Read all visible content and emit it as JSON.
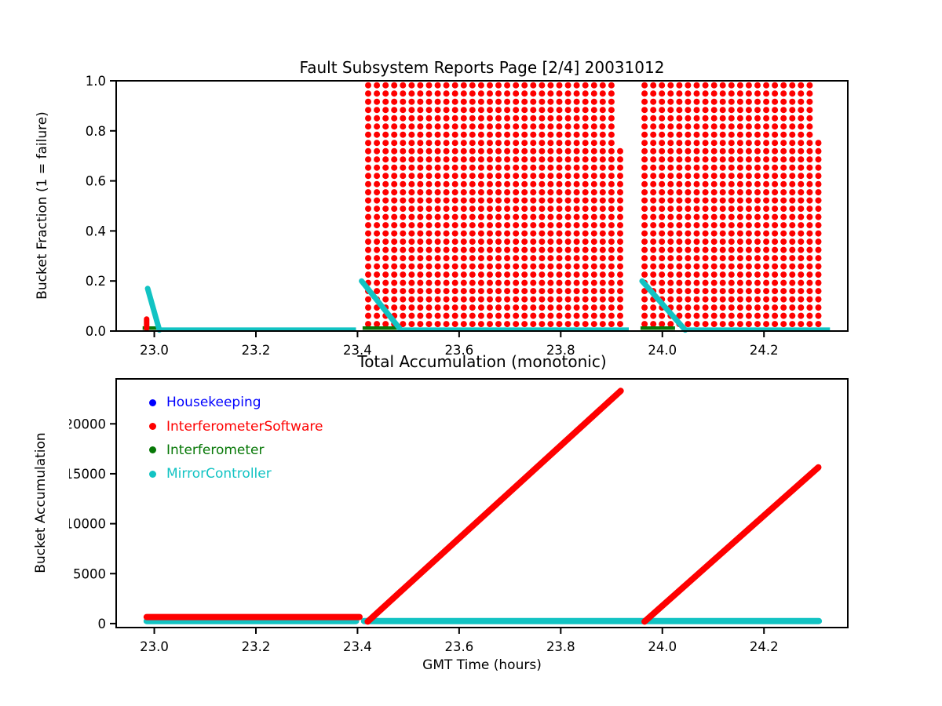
{
  "chart_data": [
    {
      "type": "scatter",
      "title": "Fault Subsystem Reports Page [2/4] 20031012",
      "ylabel": "Bucket Fraction (1 = failure)",
      "xlim": [
        22.925,
        24.365
      ],
      "ylim": [
        0,
        1
      ],
      "grid": false,
      "xticks": [
        [
          23.0,
          "23.0"
        ],
        [
          23.2,
          "23.2"
        ],
        [
          23.4,
          "23.4"
        ],
        [
          23.6,
          "23.6"
        ],
        [
          23.8,
          "23.8"
        ],
        [
          24.0,
          "24.0"
        ],
        [
          24.2,
          "24.2"
        ]
      ],
      "yticks": [
        [
          0.0,
          "0.0"
        ],
        [
          0.2,
          "0.2"
        ],
        [
          0.4,
          "0.4"
        ],
        [
          0.6,
          "0.6"
        ],
        [
          0.8,
          "0.8"
        ],
        [
          1.0,
          "1.0"
        ]
      ],
      "colors": {
        "failure_dots": "#fe0000",
        "mirror_controller": "#12c3c3",
        "interferometer": "#077807",
        "housekeeping": "#0000ff"
      },
      "dot_radius_px": 4,
      "dot_grids": [
        {
          "t_start": 23.421,
          "t_step": 0.0171,
          "cols": 29,
          "f_start": 0.028,
          "f_step": 0.0329,
          "rows": 30,
          "partial_col": {
            "t": 23.917,
            "f_max": 0.73
          }
        },
        {
          "t_start": 23.965,
          "t_step": 0.0171,
          "cols": 20,
          "f_start": 0.028,
          "f_step": 0.0329,
          "rows": 30,
          "partial_col": {
            "t": 24.307,
            "f_max": 0.76
          }
        }
      ],
      "mirror_drain_segments": [
        [
          [
            22.987,
            0.17
          ],
          [
            23.01,
            0.004
          ]
        ],
        [
          [
            23.408,
            0.2
          ],
          [
            23.483,
            0.01
          ]
        ],
        [
          [
            23.96,
            0.2
          ],
          [
            24.045,
            0.004
          ]
        ]
      ],
      "software_spike": [
        [
          22.985,
          0.048
        ],
        [
          22.985,
          0.01
        ]
      ],
      "interferometer_baseline": {
        "value": 0.012,
        "segments": [
          [
            22.977,
            23.012
          ],
          [
            23.41,
            23.483
          ],
          [
            23.957,
            24.025
          ]
        ]
      },
      "mirror_baseline": {
        "value": 0.006,
        "segments": [
          [
            23.01,
            23.397
          ],
          [
            23.483,
            23.934
          ],
          [
            24.047,
            24.33
          ]
        ]
      }
    },
    {
      "type": "line",
      "title": "Total Accumulation (monotonic)",
      "ylabel": "Bucket Accumulation",
      "xlabel": "GMT Time (hours)",
      "xlim": [
        22.925,
        24.365
      ],
      "ylim": [
        -400,
        24500
      ],
      "grid": false,
      "xticks": [
        [
          23.0,
          "23.0"
        ],
        [
          23.2,
          "23.2"
        ],
        [
          23.4,
          "23.4"
        ],
        [
          23.6,
          "23.6"
        ],
        [
          23.8,
          "23.8"
        ],
        [
          24.0,
          "24.0"
        ],
        [
          24.2,
          "24.2"
        ]
      ],
      "yticks": [
        [
          0,
          "0"
        ],
        [
          5000,
          "5000"
        ],
        [
          10000,
          "10000"
        ],
        [
          15000,
          "15000"
        ],
        [
          20000,
          "20000"
        ]
      ],
      "legend": {
        "position": "upper-left",
        "frame": false,
        "items": [
          {
            "label": "Housekeeping",
            "color": "#0000ff"
          },
          {
            "label": "InterferometerSoftware",
            "color": "#fe0000"
          },
          {
            "label": "Interferometer",
            "color": "#077807"
          },
          {
            "label": "MirrorController",
            "color": "#12c3c3"
          }
        ]
      },
      "series": [
        {
          "name": "MirrorController",
          "color": "#12c3c3",
          "linewidth": 8,
          "segments": [
            [
              [
                22.985,
                250
              ],
              [
                23.397,
                250
              ]
            ],
            [
              [
                23.413,
                250
              ],
              [
                24.308,
                250
              ]
            ]
          ]
        },
        {
          "name": "InterferometerSoftware",
          "color": "#fe0000",
          "linewidth": 8,
          "segments": [
            [
              [
                22.985,
                650
              ],
              [
                23.404,
                650
              ]
            ],
            [
              [
                23.42,
                200
              ],
              [
                23.918,
                23300
              ]
            ],
            [
              [
                23.965,
                200
              ],
              [
                24.307,
                15650
              ]
            ]
          ]
        }
      ]
    }
  ]
}
